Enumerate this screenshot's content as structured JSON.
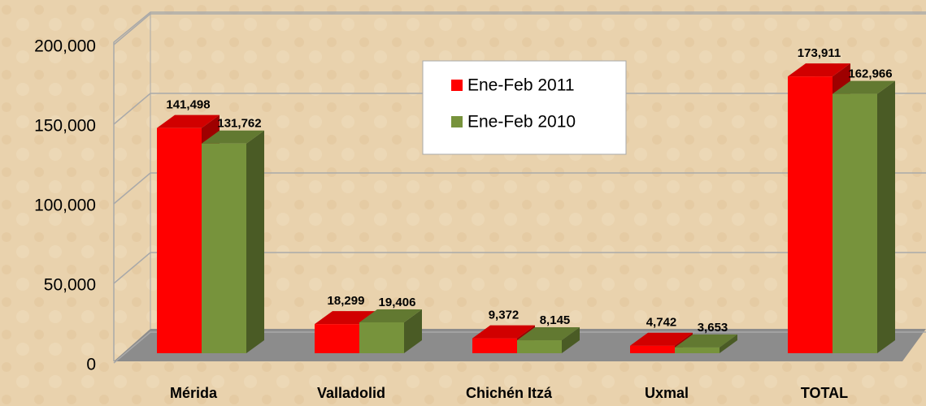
{
  "chart_data": {
    "type": "bar",
    "categories": [
      "Mérida",
      "Valladolid",
      "Chichén Itzá",
      "Uxmal",
      "TOTAL"
    ],
    "series": [
      {
        "name": "Ene-Feb 2011",
        "color": "#ff0000",
        "values": [
          141498,
          18299,
          9372,
          4742,
          173911
        ],
        "value_labels": [
          "141,498",
          "18,299",
          "9,372",
          "4,742",
          "173,911"
        ]
      },
      {
        "name": "Ene-Feb 2010",
        "color": "#77933c",
        "values": [
          131762,
          19406,
          8145,
          3653,
          162966
        ],
        "value_labels": [
          "131,762",
          "19,406",
          "8,145",
          "3,653",
          "162,966"
        ]
      }
    ],
    "ylim": [
      0,
      200000
    ],
    "yticks": [
      0,
      {
        "value": 50000,
        "label": "50,000"
      },
      {
        "value": 100000,
        "label": "100,000"
      },
      {
        "value": 150000,
        "label": "150,000"
      },
      {
        "value": 200000,
        "label": "200,000"
      }
    ],
    "grid": true,
    "legend": "top"
  }
}
